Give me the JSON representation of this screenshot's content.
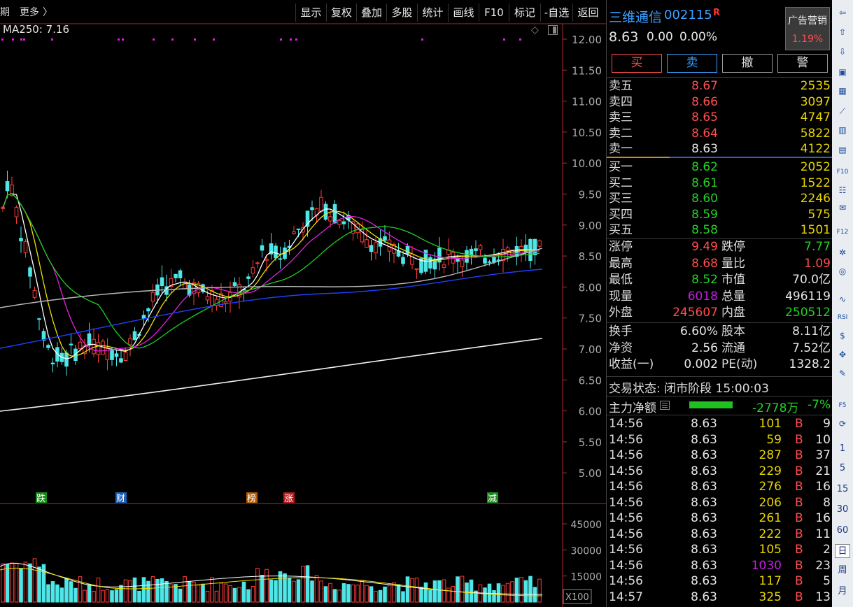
{
  "toolbar": {
    "left1": "期",
    "left2": "更多",
    "left3": "〉",
    "buttons": [
      "显示",
      "复权",
      "叠加",
      "多股",
      "统计",
      "画线",
      "F10",
      "标记",
      "-自选",
      "返回"
    ]
  },
  "ma_label": "MA250: 7.16",
  "price_axis": [
    "12.00",
    "11.50",
    "11.00",
    "10.50",
    "10.00",
    "9.50",
    "9.00",
    "8.50",
    "8.00",
    "7.50",
    "7.00",
    "6.50",
    "6.00",
    "5.50",
    "5.00"
  ],
  "volume_axis": [
    "45000",
    "30000",
    "15000"
  ],
  "vol_unit": "X100",
  "events": [
    {
      "label": "跌",
      "color": "#1a8c1a"
    },
    {
      "label": "财",
      "color": "#1e5fb5"
    },
    {
      "label": "榜",
      "color": "#b35a00"
    },
    {
      "label": "涨",
      "color": "#b31a1a"
    },
    {
      "label": "减",
      "color": "#1a8c1a"
    }
  ],
  "stock": {
    "name": "三维通信",
    "code": "002115",
    "flag": "R",
    "price": "8.63",
    "change": "0.00",
    "pct": "0.00%"
  },
  "sector": {
    "name": "广告营销",
    "pct": "1.19%"
  },
  "trade_buttons": [
    "买",
    "卖",
    "撤",
    "警"
  ],
  "asks": [
    {
      "label": "卖五",
      "price": "8.67",
      "vol": "2535"
    },
    {
      "label": "卖四",
      "price": "8.66",
      "vol": "3097"
    },
    {
      "label": "卖三",
      "price": "8.65",
      "vol": "4747"
    },
    {
      "label": "卖二",
      "price": "8.64",
      "vol": "5822"
    },
    {
      "label": "卖一",
      "price": "8.63",
      "vol": "4122"
    }
  ],
  "bids": [
    {
      "label": "买一",
      "price": "8.62",
      "vol": "2052"
    },
    {
      "label": "买二",
      "price": "8.61",
      "vol": "1522"
    },
    {
      "label": "买三",
      "price": "8.60",
      "vol": "2246"
    },
    {
      "label": "买四",
      "price": "8.59",
      "vol": "575"
    },
    {
      "label": "买五",
      "price": "8.58",
      "vol": "1501"
    }
  ],
  "stats": [
    {
      "l1": "涨停",
      "v1": "9.49",
      "c1": "red",
      "l2": "跌停",
      "v2": "7.77",
      "c2": "grn"
    },
    {
      "l1": "最高",
      "v1": "8.68",
      "c1": "red",
      "l2": "量比",
      "v2": "1.09",
      "c2": "red"
    },
    {
      "l1": "最低",
      "v1": "8.52",
      "c1": "grn",
      "l2": "市值",
      "v2": "70.0亿",
      "c2": "wht"
    },
    {
      "l1": "现量",
      "v1": "6018",
      "c1": "pur",
      "l2": "总量",
      "v2": "496119",
      "c2": "wht"
    },
    {
      "l1": "外盘",
      "v1": "245607",
      "c1": "red",
      "l2": "内盘",
      "v2": "250512",
      "c2": "grn"
    }
  ],
  "fund": [
    {
      "l1": "换手",
      "v1": "6.60%",
      "l2": "股本",
      "v2": "8.11亿"
    },
    {
      "l1": "净资",
      "v1": "2.56",
      "l2": "流通",
      "v2": "7.52亿"
    },
    {
      "l1": "收益(一)",
      "v1": "0.002",
      "l2": "PE(动)",
      "v2": "1328.2"
    }
  ],
  "trade_status": "交易状态: 闭市阶段 15:00:03",
  "main_flow": {
    "label": "主力净额",
    "value": "-2778万",
    "pct": "-7%"
  },
  "ticks": [
    {
      "t": "14:56",
      "p": "8.63",
      "v": "101",
      "s": "B",
      "n": "9",
      "vc": "yel"
    },
    {
      "t": "14:56",
      "p": "8.63",
      "v": "59",
      "s": "B",
      "n": "10",
      "vc": "yel"
    },
    {
      "t": "14:56",
      "p": "8.63",
      "v": "287",
      "s": "B",
      "n": "37",
      "vc": "yel"
    },
    {
      "t": "14:56",
      "p": "8.63",
      "v": "229",
      "s": "B",
      "n": "21",
      "vc": "yel"
    },
    {
      "t": "14:56",
      "p": "8.63",
      "v": "276",
      "s": "B",
      "n": "16",
      "vc": "yel"
    },
    {
      "t": "14:56",
      "p": "8.63",
      "v": "206",
      "s": "B",
      "n": "8",
      "vc": "yel"
    },
    {
      "t": "14:56",
      "p": "8.63",
      "v": "261",
      "s": "B",
      "n": "16",
      "vc": "yel"
    },
    {
      "t": "14:56",
      "p": "8.63",
      "v": "222",
      "s": "B",
      "n": "11",
      "vc": "yel"
    },
    {
      "t": "14:56",
      "p": "8.63",
      "v": "105",
      "s": "B",
      "n": "2",
      "vc": "yel"
    },
    {
      "t": "14:56",
      "p": "8.63",
      "v": "1030",
      "s": "B",
      "n": "23",
      "vc": "pur"
    },
    {
      "t": "14:56",
      "p": "8.63",
      "v": "117",
      "s": "B",
      "n": "5",
      "vc": "yel"
    },
    {
      "t": "14:57",
      "p": "8.63",
      "v": "325",
      "s": "B",
      "n": "13",
      "vc": "yel"
    }
  ],
  "right_tools": [
    "1",
    "5",
    "15",
    "30",
    "60",
    "日",
    "周",
    "月"
  ]
}
